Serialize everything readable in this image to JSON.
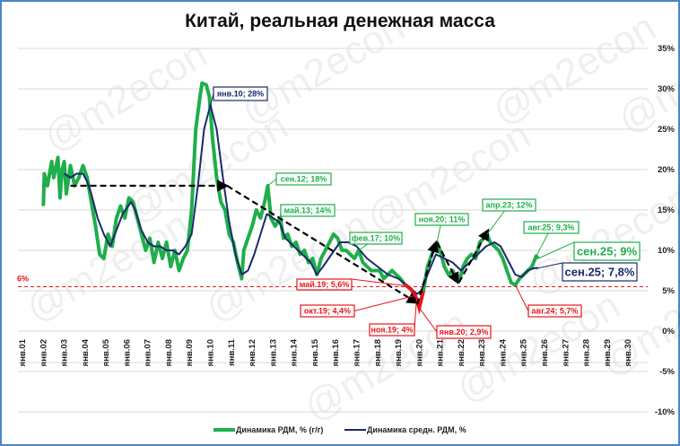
{
  "watermark": "@m2econ",
  "colors": {
    "green": "#1fae4b",
    "navy": "#1a2a6c",
    "red": "#e8141c",
    "grid": "#d9d9d9",
    "frame": "#4a86c8"
  },
  "chart_data": {
    "type": "line",
    "title": "Китай, реальная денежная масса",
    "ylim": [
      -10,
      35
    ],
    "yticks": [
      35,
      30,
      25,
      20,
      15,
      10,
      5,
      0,
      -5,
      -10
    ],
    "ytick_labels": [
      "35%",
      "30%",
      "25%",
      "20%",
      "15%",
      "10%",
      "5%",
      "0%",
      "-5%",
      "-10%"
    ],
    "xlim": [
      2001,
      2030
    ],
    "xtick_labels": [
      "янв.01",
      "янв.02",
      "янв.03",
      "янв.04",
      "янв.05",
      "янв.06",
      "янв.07",
      "янв.08",
      "янв.09",
      "янв.10",
      "янв.11",
      "янв.12",
      "янв.13",
      "янв.14",
      "янв.15",
      "янв.16",
      "янв.17",
      "янв.18",
      "янв.19",
      "янв.20",
      "янв.21",
      "янв.22",
      "янв.23",
      "янв.24",
      "янв.25",
      "янв.26",
      "янв.27",
      "янв.28",
      "янв.29",
      "янв.30"
    ],
    "grid": true,
    "legend_position": "bottom",
    "threshold": {
      "value": 5.5,
      "label": "6%"
    },
    "series": [
      {
        "name": "Динамика РДМ, % (г/г)",
        "color": "#1fae4b",
        "points": [
          [
            2002.0,
            15.5
          ],
          [
            2002.05,
            19.5
          ],
          [
            2002.2,
            18
          ],
          [
            2002.4,
            21
          ],
          [
            2002.5,
            19
          ],
          [
            2002.7,
            21.5
          ],
          [
            2002.8,
            16.5
          ],
          [
            2002.9,
            20
          ],
          [
            2003.0,
            21
          ],
          [
            2003.1,
            17
          ],
          [
            2003.3,
            20.5
          ],
          [
            2003.5,
            18
          ],
          [
            2003.7,
            19
          ],
          [
            2003.9,
            20.5
          ],
          [
            2004.1,
            19
          ],
          [
            2004.3,
            16
          ],
          [
            2004.5,
            13
          ],
          [
            2004.7,
            9.5
          ],
          [
            2004.9,
            9
          ],
          [
            2005.1,
            12
          ],
          [
            2005.3,
            10.5
          ],
          [
            2005.5,
            14
          ],
          [
            2005.7,
            15.5
          ],
          [
            2005.9,
            14
          ],
          [
            2006.1,
            16.5
          ],
          [
            2006.3,
            16
          ],
          [
            2006.5,
            14
          ],
          [
            2006.7,
            12
          ],
          [
            2006.9,
            10
          ],
          [
            2007.1,
            11.5
          ],
          [
            2007.3,
            8.5
          ],
          [
            2007.5,
            11
          ],
          [
            2007.7,
            9
          ],
          [
            2007.9,
            11
          ],
          [
            2008.1,
            8
          ],
          [
            2008.3,
            10
          ],
          [
            2008.5,
            7.5
          ],
          [
            2008.7,
            9
          ],
          [
            2008.9,
            10
          ],
          [
            2009.1,
            15
          ],
          [
            2009.3,
            25
          ],
          [
            2009.5,
            29
          ],
          [
            2009.6,
            30.7
          ],
          [
            2009.8,
            30.5
          ],
          [
            2009.95,
            29
          ],
          [
            2010.1,
            24
          ],
          [
            2010.3,
            19
          ],
          [
            2010.5,
            16
          ],
          [
            2010.7,
            15
          ],
          [
            2010.9,
            12
          ],
          [
            2011.1,
            11
          ],
          [
            2011.3,
            8.5
          ],
          [
            2011.5,
            6.5
          ],
          [
            2011.6,
            10
          ],
          [
            2011.8,
            11.5
          ],
          [
            2012.0,
            13
          ],
          [
            2012.2,
            15
          ],
          [
            2012.4,
            14
          ],
          [
            2012.6,
            16
          ],
          [
            2012.75,
            18
          ],
          [
            2012.9,
            14
          ],
          [
            2013.1,
            13
          ],
          [
            2013.35,
            14
          ],
          [
            2013.5,
            11.5
          ],
          [
            2013.7,
            12
          ],
          [
            2013.9,
            10.5
          ],
          [
            2014.1,
            11
          ],
          [
            2014.3,
            9.5
          ],
          [
            2014.5,
            10
          ],
          [
            2014.7,
            8.5
          ],
          [
            2014.9,
            9
          ],
          [
            2015.1,
            7
          ],
          [
            2015.3,
            9
          ],
          [
            2015.5,
            10
          ],
          [
            2015.7,
            11
          ],
          [
            2015.9,
            12
          ],
          [
            2016.1,
            11.5
          ],
          [
            2016.3,
            10
          ],
          [
            2016.5,
            10
          ],
          [
            2016.7,
            9.5
          ],
          [
            2016.9,
            9
          ],
          [
            2017.1,
            10
          ],
          [
            2017.3,
            8.5
          ],
          [
            2017.5,
            8
          ],
          [
            2017.7,
            7.5
          ],
          [
            2017.9,
            7.5
          ],
          [
            2018.1,
            7.5
          ],
          [
            2018.3,
            6.5
          ],
          [
            2018.5,
            7
          ],
          [
            2018.7,
            7.5
          ],
          [
            2018.9,
            7
          ],
          [
            2019.1,
            6.5
          ],
          [
            2019.3,
            5.8
          ],
          [
            2019.4,
            5.6
          ],
          [
            2019.6,
            5.2
          ],
          [
            2019.8,
            4.4
          ],
          [
            2019.87,
            4
          ],
          [
            2020.0,
            2.9
          ],
          [
            2020.2,
            5
          ],
          [
            2020.4,
            8
          ],
          [
            2020.6,
            9.5
          ],
          [
            2020.85,
            11
          ],
          [
            2021.0,
            10
          ],
          [
            2021.2,
            8
          ],
          [
            2021.4,
            7
          ],
          [
            2021.6,
            7.5
          ],
          [
            2021.8,
            6.5
          ],
          [
            2021.95,
            6.5
          ],
          [
            2022.1,
            8
          ],
          [
            2022.3,
            9
          ],
          [
            2022.5,
            9.5
          ],
          [
            2022.7,
            9
          ],
          [
            2022.9,
            11
          ],
          [
            2023.1,
            11.5
          ],
          [
            2023.25,
            12
          ],
          [
            2023.4,
            11
          ],
          [
            2023.6,
            10.5
          ],
          [
            2023.8,
            10
          ],
          [
            2024.0,
            9
          ],
          [
            2024.2,
            7.5
          ],
          [
            2024.4,
            6
          ],
          [
            2024.6,
            5.7
          ],
          [
            2024.8,
            6.5
          ],
          [
            2025.0,
            7
          ],
          [
            2025.2,
            7.5
          ],
          [
            2025.4,
            8
          ],
          [
            2025.6,
            9.3
          ],
          [
            2025.7,
            9
          ]
        ]
      },
      {
        "name": "Динамика средн. РДМ, %",
        "color": "#1a2a6c",
        "points": [
          [
            2003.0,
            19.5
          ],
          [
            2003.3,
            19
          ],
          [
            2003.6,
            19.5
          ],
          [
            2003.9,
            19.5
          ],
          [
            2004.1,
            18.5
          ],
          [
            2004.3,
            17
          ],
          [
            2004.6,
            14
          ],
          [
            2004.9,
            12
          ],
          [
            2005.2,
            10.5
          ],
          [
            2005.5,
            12.5
          ],
          [
            2005.8,
            14.5
          ],
          [
            2006.2,
            16
          ],
          [
            2006.4,
            15
          ],
          [
            2006.7,
            12.5
          ],
          [
            2007.0,
            11
          ],
          [
            2007.3,
            10.5
          ],
          [
            2007.6,
            10.5
          ],
          [
            2007.9,
            10
          ],
          [
            2008.2,
            10
          ],
          [
            2008.5,
            9.5
          ],
          [
            2008.8,
            10.5
          ],
          [
            2009.1,
            12
          ],
          [
            2009.4,
            18
          ],
          [
            2009.7,
            25
          ],
          [
            2010.0,
            28
          ],
          [
            2010.3,
            25
          ],
          [
            2010.6,
            19
          ],
          [
            2010.9,
            13.5
          ],
          [
            2011.2,
            9.5
          ],
          [
            2011.5,
            7
          ],
          [
            2011.8,
            7.5
          ],
          [
            2012.1,
            9.5
          ],
          [
            2012.4,
            12
          ],
          [
            2012.7,
            14.5
          ],
          [
            2013.0,
            14
          ],
          [
            2013.3,
            13.5
          ],
          [
            2013.6,
            11.5
          ],
          [
            2014.0,
            10.5
          ],
          [
            2014.4,
            9.5
          ],
          [
            2014.8,
            8.5
          ],
          [
            2015.1,
            7
          ],
          [
            2015.4,
            8
          ],
          [
            2015.8,
            9.5
          ],
          [
            2016.2,
            11
          ],
          [
            2016.6,
            11
          ],
          [
            2017.0,
            10.5
          ],
          [
            2017.5,
            9
          ],
          [
            2018.0,
            8
          ],
          [
            2018.5,
            7
          ],
          [
            2019.0,
            6.5
          ],
          [
            2019.5,
            5.5
          ],
          [
            2019.9,
            4.6
          ],
          [
            2020.1,
            5
          ],
          [
            2020.4,
            7
          ],
          [
            2020.8,
            9.5
          ],
          [
            2021.2,
            9
          ],
          [
            2021.6,
            8.5
          ],
          [
            2022.0,
            7.5
          ],
          [
            2022.4,
            8.5
          ],
          [
            2022.8,
            9.5
          ],
          [
            2023.2,
            10.5
          ],
          [
            2023.6,
            11
          ],
          [
            2023.9,
            10.5
          ],
          [
            2024.2,
            9
          ],
          [
            2024.6,
            7
          ],
          [
            2024.9,
            6.7
          ],
          [
            2025.2,
            7.5
          ],
          [
            2025.5,
            7.8
          ],
          [
            2025.7,
            7.8
          ]
        ]
      }
    ],
    "trend_arrows": [
      [
        [
          2003.3,
          18
        ],
        [
          2010.8,
          18
        ]
      ],
      [
        [
          2010.8,
          18
        ],
        [
          2019.9,
          3.5
        ]
      ],
      [
        [
          2019.9,
          3.3
        ],
        [
          2020.8,
          11
        ]
      ],
      [
        [
          2020.85,
          11
        ],
        [
          2021.85,
          6
        ]
      ],
      [
        [
          2021.9,
          6
        ],
        [
          2023.3,
          12.5
        ]
      ]
    ],
    "annotations": [
      {
        "label": "янв.10; 28%",
        "x": 2010.0,
        "y": 28,
        "color": "#1a2a6c"
      },
      {
        "label": "сен.12; 18%",
        "x": 2012.75,
        "y": 18,
        "color": "#1fae4b"
      },
      {
        "label": "май.13; 14%",
        "x": 2013.35,
        "y": 14,
        "color": "#1fae4b"
      },
      {
        "label": "фев.17; 10%",
        "x": 2017.1,
        "y": 10,
        "color": "#1fae4b"
      },
      {
        "label": "ноя.20; 11%",
        "x": 2020.85,
        "y": 11,
        "color": "#1fae4b"
      },
      {
        "label": "апр.23; 12%",
        "x": 2023.25,
        "y": 12,
        "color": "#1fae4b"
      },
      {
        "label": "авг.25; 9,3%",
        "x": 2025.6,
        "y": 9.3,
        "color": "#1fae4b"
      },
      {
        "label": "сен.25; 9%",
        "x": 2025.7,
        "y": 9,
        "color": "#1fae4b"
      },
      {
        "label": "сен.25; 7,8%",
        "x": 2025.7,
        "y": 7.8,
        "color": "#1a2a6c"
      },
      {
        "label": "май.19; 5,6%",
        "x": 2019.4,
        "y": 5.6,
        "color": "#e8141c"
      },
      {
        "label": "окт.19; 4,4%",
        "x": 2019.8,
        "y": 4.4,
        "color": "#e8141c"
      },
      {
        "label": "ноя.19; 4%",
        "x": 2019.87,
        "y": 4,
        "color": "#e8141c"
      },
      {
        "label": "янв.20; 2,9%",
        "x": 2020.0,
        "y": 2.9,
        "color": "#e8141c"
      },
      {
        "label": "авг.24; 5,7%",
        "x": 2024.6,
        "y": 5.7,
        "color": "#e8141c"
      }
    ]
  }
}
